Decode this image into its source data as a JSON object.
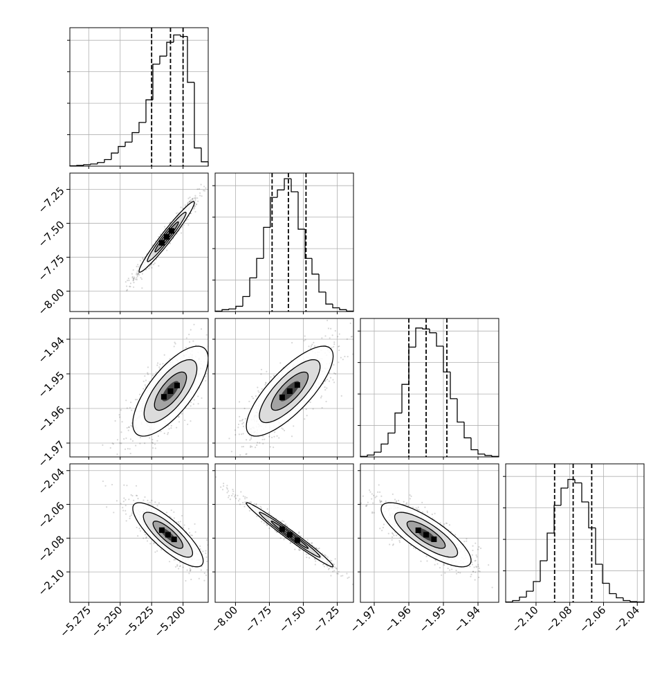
{
  "chart_data": {
    "type": "corner",
    "parameters": 4,
    "axes": [
      {
        "range": [
          -5.29,
          -5.18
        ],
        "ticks": [
          -5.275,
          -5.25,
          -5.225,
          -5.2
        ],
        "tick_labels": [
          "−5.275",
          "−5.250",
          "−5.225",
          "−5.200"
        ],
        "quantiles": [
          -5.225,
          -5.21,
          -5.2
        ]
      },
      {
        "range": [
          -8.15,
          -7.13
        ],
        "ticks": [
          -8.0,
          -7.75,
          -7.5,
          -7.25
        ],
        "tick_labels": [
          "−8.00",
          "−7.75",
          "−7.50",
          "−7.25"
        ],
        "quantiles": [
          -7.73,
          -7.61,
          -7.48
        ]
      },
      {
        "range": [
          -1.974,
          -1.934
        ],
        "ticks": [
          -1.97,
          -1.96,
          -1.95,
          -1.94
        ],
        "tick_labels": [
          "−1.97",
          "−1.96",
          "−1.95",
          "−1.94"
        ],
        "quantiles": [
          -1.96,
          -1.955,
          -1.949
        ]
      },
      {
        "range": [
          -2.118,
          -2.036
        ],
        "ticks": [
          -2.1,
          -2.08,
          -2.06,
          -2.04
        ],
        "tick_labels": [
          "−2.10",
          "−2.08",
          "−2.06",
          "−2.04"
        ],
        "quantiles": [
          -2.089,
          -2.078,
          -2.067
        ]
      }
    ],
    "histograms": [
      {
        "bin_edges": [
          -5.29,
          -5.2845,
          -5.279,
          -5.2735,
          -5.268,
          -5.2625,
          -5.257,
          -5.2515,
          -5.246,
          -5.2405,
          -5.235,
          -5.2295,
          -5.224,
          -5.2185,
          -5.213,
          -5.2075,
          -5.202,
          -5.1965,
          -5.191,
          -5.1855,
          -5.18
        ],
        "counts": [
          0.5,
          1,
          2,
          3,
          5,
          9,
          18,
          27,
          33,
          46,
          60,
          91,
          140,
          151,
          170,
          180,
          178,
          115,
          25,
          6
        ],
        "ymax": 190
      },
      {
        "bin_edges": [
          -8.15,
          -8.099,
          -8.048,
          -7.997,
          -7.946,
          -7.895,
          -7.844,
          -7.793,
          -7.742,
          -7.691,
          -7.64,
          -7.589,
          -7.538,
          -7.487,
          -7.436,
          -7.385,
          -7.334,
          -7.283,
          -7.232,
          -7.181,
          -7.13
        ],
        "counts": [
          1,
          5,
          7,
          14,
          40,
          90,
          142,
          225,
          305,
          325,
          355,
          320,
          220,
          142,
          100,
          52,
          20,
          10,
          5,
          1
        ],
        "ymax": 370
      },
      {
        "bin_edges": [
          -1.974,
          -1.972,
          -1.97,
          -1.968,
          -1.966,
          -1.964,
          -1.962,
          -1.96,
          -1.958,
          -1.956,
          -1.954,
          -1.952,
          -1.95,
          -1.948,
          -1.946,
          -1.944,
          -1.942,
          -1.94,
          -1.938,
          -1.936,
          -1.934
        ],
        "counts": [
          1,
          4,
          10,
          27,
          50,
          92,
          152,
          230,
          270,
          268,
          260,
          232,
          178,
          122,
          73,
          40,
          15,
          6,
          3,
          1
        ],
        "ymax": 290
      },
      {
        "bin_edges": [
          -2.118,
          -2.1139,
          -2.1098,
          -2.1057,
          -2.1016,
          -2.0975,
          -2.0934,
          -2.0893,
          -2.0852,
          -2.0811,
          -2.077,
          -2.0729,
          -2.0688,
          -2.0647,
          -2.0606,
          -2.0565,
          -2.0524,
          -2.0483,
          -2.0442,
          -2.0401,
          -2.036
        ],
        "counts": [
          1,
          5,
          15,
          32,
          60,
          120,
          200,
          280,
          330,
          355,
          345,
          290,
          215,
          110,
          55,
          25,
          13,
          5,
          2,
          1
        ],
        "ymax": 400
      }
    ],
    "pairs": [
      {
        "row": 1,
        "col": 0,
        "center": [
          -5.213,
          -7.6
        ],
        "sd": [
          0.011,
          0.13
        ],
        "corr": 0.97
      },
      {
        "row": 2,
        "col": 0,
        "center": [
          -5.21,
          -1.955
        ],
        "sd": [
          0.015,
          0.0065
        ],
        "corr": 0.72
      },
      {
        "row": 2,
        "col": 1,
        "center": [
          -7.6,
          -1.955
        ],
        "sd": [
          0.16,
          0.0065
        ],
        "corr": 0.78
      },
      {
        "row": 3,
        "col": 0,
        "center": [
          -5.212,
          -2.078
        ],
        "sd": [
          0.014,
          0.0095
        ],
        "corr": -0.82
      },
      {
        "row": 3,
        "col": 1,
        "center": [
          -7.6,
          -2.078
        ],
        "sd": [
          0.16,
          0.0095
        ],
        "corr": -0.985
      },
      {
        "row": 3,
        "col": 2,
        "center": [
          -1.955,
          -2.078
        ],
        "sd": [
          0.0065,
          0.0095
        ],
        "corr": -0.8
      }
    ],
    "grid": true,
    "title": "",
    "xlabel": "",
    "ylabel": ""
  }
}
